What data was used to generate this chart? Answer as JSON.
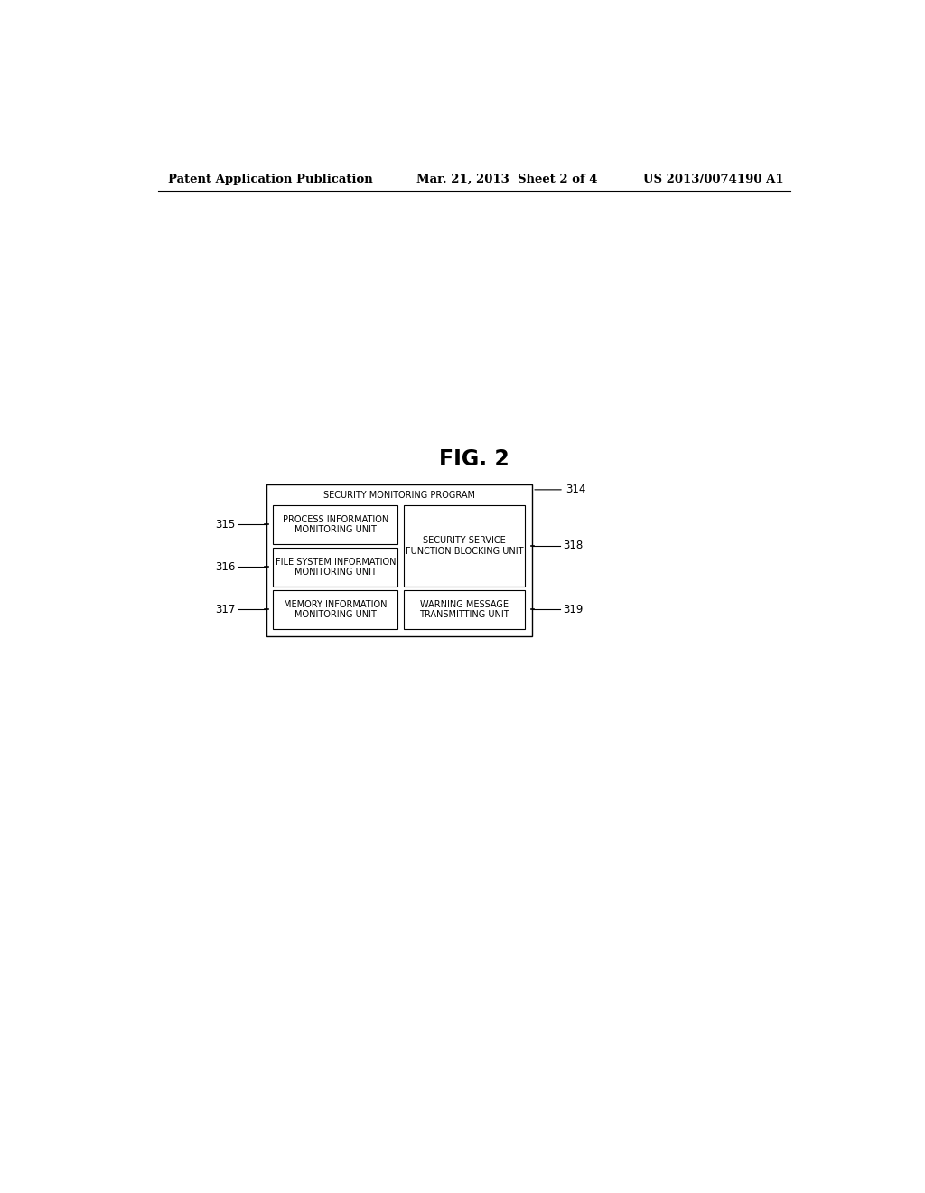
{
  "fig_label": "FIG. 2",
  "header_left": "Patent Application Publication",
  "header_mid": "Mar. 21, 2013  Sheet 2 of 4",
  "header_right": "US 2013/0074190 A1",
  "outer_box_label": "SECURITY MONITORING PROGRAM",
  "outer_box_ref": "314",
  "boxes": [
    {
      "label": "PROCESS INFORMATION\nMONITORING UNIT",
      "ref": "315",
      "ref_side": "left",
      "col": 0,
      "row": 0
    },
    {
      "label": "FILE SYSTEM INFORMATION\nMONITORING UNIT",
      "ref": "316",
      "ref_side": "left",
      "col": 0,
      "row": 1
    },
    {
      "label": "MEMORY INFORMATION\nMONITORING UNIT",
      "ref": "317",
      "ref_side": "left",
      "col": 0,
      "row": 2
    },
    {
      "label": "SECURITY SERVICE\nFUNCTION BLOCKING UNIT",
      "ref": "318",
      "ref_side": "right",
      "col": 1,
      "row": 0
    },
    {
      "label": "WARNING MESSAGE\nTRANSMITTING UNIT",
      "ref": "319",
      "ref_side": "right",
      "col": 1,
      "row": 1
    }
  ],
  "bg_color": "#ffffff",
  "box_edge_color": "#000000",
  "text_color": "#000000",
  "font_size_header": 9.5,
  "font_size_fig_label": 17,
  "font_size_box": 7.0,
  "font_size_ref": 8.5,
  "font_size_outer_label": 7.0
}
